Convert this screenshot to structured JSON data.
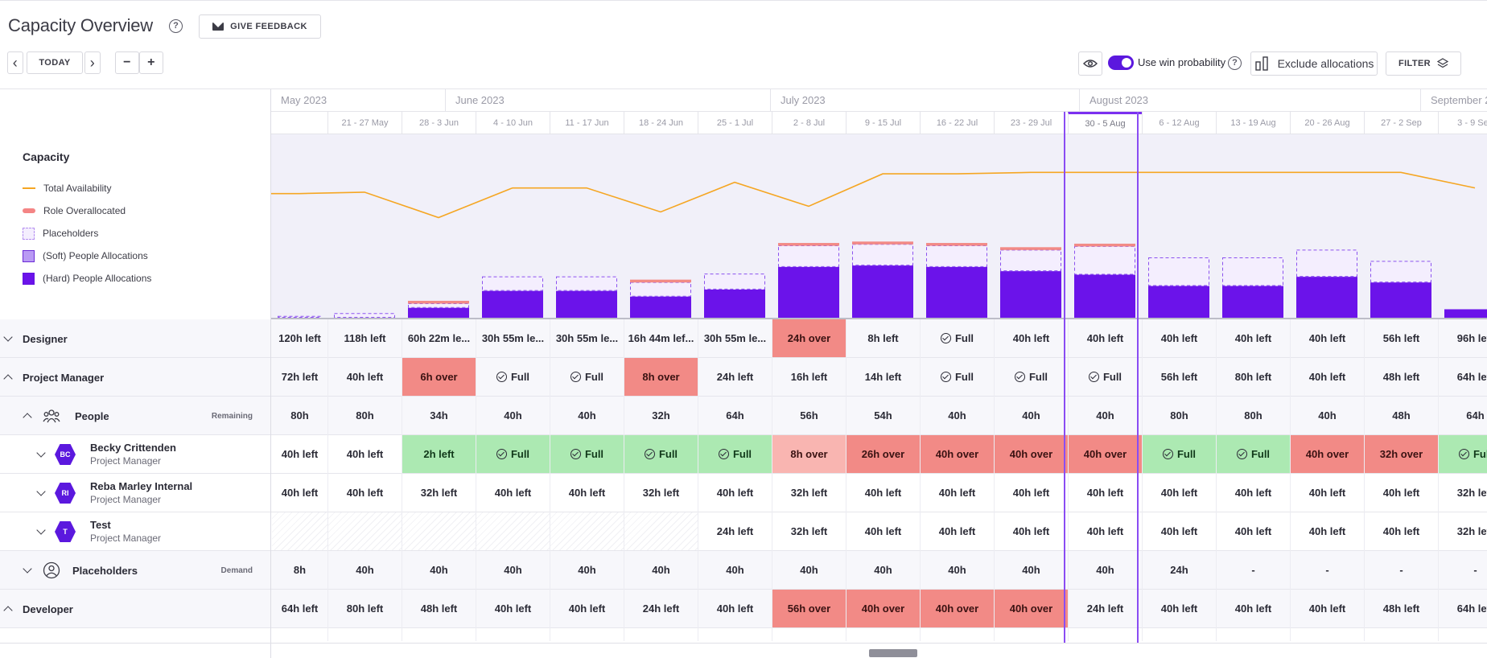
{
  "header": {
    "title": "Capacity Overview",
    "feedback_label": "GIVE FEEDBACK",
    "today_label": "TODAY",
    "minus_label": "−",
    "plus_label": "+",
    "prev_label": "‹",
    "next_label": "›",
    "win_probability_label": "Use win probability",
    "exclude_label": "Exclude allocations",
    "filter_label": "FILTER"
  },
  "timeline": {
    "months": [
      {
        "label": "May 2023"
      },
      {
        "label": "June 2023"
      },
      {
        "label": "July 2023"
      },
      {
        "label": "August 2023"
      },
      {
        "label": "September 2"
      }
    ],
    "weeks": [
      "",
      "21 - 27 May",
      "28 - 3 Jun",
      "4 - 10 Jun",
      "11 - 17 Jun",
      "18 - 24 Jun",
      "25 - 1 Jul",
      "2 - 8 Jul",
      "9 - 15 Jul",
      "16 - 22 Jul",
      "23 - 29 Jul",
      "30 - 5 Aug",
      "6 - 12 Aug",
      "13 - 19 Aug",
      "20 - 26 Aug",
      "27 - 2 Sep",
      "3 - 9 Sep"
    ],
    "current_week_index": 11
  },
  "legend": {
    "title": "Capacity",
    "items": [
      {
        "label": "Total Availability",
        "kind": "line"
      },
      {
        "label": "Role Overallocated",
        "kind": "over"
      },
      {
        "label": "Placeholders",
        "kind": "ph"
      },
      {
        "label": "(Soft) People Allocations",
        "kind": "soft"
      },
      {
        "label": "(Hard) People Allocations",
        "kind": "hard"
      }
    ]
  },
  "chart_data": {
    "type": "bar",
    "categories": [
      "",
      "21 - 27 May",
      "28 - 3 Jun",
      "4 - 10 Jun",
      "11 - 17 Jun",
      "18 - 24 Jun",
      "25 - 1 Jul",
      "2 - 8 Jul",
      "9 - 15 Jul",
      "16 - 22 Jul",
      "23 - 29 Jul",
      "30 - 5 Aug",
      "6 - 12 Aug",
      "13 - 19 Aug",
      "20 - 26 Aug",
      "27 - 2 Sep",
      "3 - 9 Sep"
    ],
    "series": [
      {
        "name": "Total Availability",
        "values": [
          176,
          178,
          142,
          184,
          184,
          150,
          192,
          158,
          204,
          204,
          206,
          206,
          206,
          206,
          206,
          206,
          184
        ]
      },
      {
        "name": "(Hard) People Allocations",
        "values": [
          0,
          0,
          14,
          38,
          38,
          30,
          40,
          72,
          74,
          72,
          66,
          61,
          45,
          45,
          58,
          50,
          12
        ]
      },
      {
        "name": "Placeholders",
        "values": [
          2,
          6,
          6,
          20,
          20,
          20,
          22,
          30,
          30,
          30,
          30,
          40,
          40,
          40,
          38,
          30,
          0
        ]
      },
      {
        "name": "Role Overallocated",
        "values": [
          0,
          0,
          4,
          0,
          0,
          4,
          0,
          4,
          4,
          4,
          4,
          4,
          0,
          0,
          0,
          0,
          0
        ]
      }
    ],
    "ylim": [
      0,
      260
    ]
  },
  "rows": [
    {
      "key": "designer",
      "type": "role",
      "name": "Designer",
      "expanded": false,
      "cells": [
        [
          "120h left",
          "n"
        ],
        [
          "118h left",
          "n"
        ],
        [
          "60h 22m le...",
          "n"
        ],
        [
          "30h 55m le...",
          "n"
        ],
        [
          "30h 55m le...",
          "n"
        ],
        [
          "16h 44m lef...",
          "n"
        ],
        [
          "30h 55m le...",
          "n"
        ],
        [
          "24h over",
          "red"
        ],
        [
          "8h left",
          "n"
        ],
        [
          "Full",
          "full"
        ],
        [
          "40h left",
          "n"
        ],
        [
          "40h left",
          "n"
        ],
        [
          "40h left",
          "n"
        ],
        [
          "40h left",
          "n"
        ],
        [
          "40h left",
          "n"
        ],
        [
          "56h left",
          "n"
        ],
        [
          "96h left",
          "n"
        ]
      ]
    },
    {
      "key": "pm",
      "type": "role",
      "name": "Project Manager",
      "expanded": true,
      "cells": [
        [
          "72h left",
          "n"
        ],
        [
          "40h left",
          "n"
        ],
        [
          "6h over",
          "red"
        ],
        [
          "Full",
          "full"
        ],
        [
          "Full",
          "full"
        ],
        [
          "8h over",
          "red"
        ],
        [
          "24h left",
          "n"
        ],
        [
          "16h left",
          "n"
        ],
        [
          "14h left",
          "n"
        ],
        [
          "Full",
          "full"
        ],
        [
          "Full",
          "full"
        ],
        [
          "Full",
          "full"
        ],
        [
          "56h left",
          "n"
        ],
        [
          "80h left",
          "n"
        ],
        [
          "40h left",
          "n"
        ],
        [
          "48h left",
          "n"
        ],
        [
          "64h left",
          "n"
        ]
      ]
    },
    {
      "key": "people",
      "type": "people",
      "name": "People",
      "tag": "Remaining",
      "cells": [
        [
          "80h",
          "n"
        ],
        [
          "80h",
          "n"
        ],
        [
          "34h",
          "n"
        ],
        [
          "40h",
          "n"
        ],
        [
          "40h",
          "n"
        ],
        [
          "32h",
          "n"
        ],
        [
          "64h",
          "n"
        ],
        [
          "56h",
          "n"
        ],
        [
          "54h",
          "n"
        ],
        [
          "40h",
          "n"
        ],
        [
          "40h",
          "n"
        ],
        [
          "40h",
          "n"
        ],
        [
          "80h",
          "n"
        ],
        [
          "80h",
          "n"
        ],
        [
          "40h",
          "n"
        ],
        [
          "48h",
          "n"
        ],
        [
          "64h",
          "n"
        ]
      ]
    },
    {
      "key": "becky",
      "type": "person",
      "name": "Becky Crittenden",
      "role": "Project Manager",
      "initials": "BC",
      "cells": [
        [
          "40h left",
          "n"
        ],
        [
          "40h left",
          "n"
        ],
        [
          "2h left",
          "green"
        ],
        [
          "Full",
          "gfull"
        ],
        [
          "Full",
          "gfull"
        ],
        [
          "Full",
          "gfull"
        ],
        [
          "Full",
          "gfull"
        ],
        [
          "8h over",
          "redlight"
        ],
        [
          "26h over",
          "red"
        ],
        [
          "40h over",
          "red"
        ],
        [
          "40h over",
          "red"
        ],
        [
          "40h over",
          "red"
        ],
        [
          "Full",
          "gfull"
        ],
        [
          "Full",
          "gfull"
        ],
        [
          "40h over",
          "red"
        ],
        [
          "32h over",
          "red"
        ],
        [
          "Full",
          "gfull"
        ]
      ]
    },
    {
      "key": "reba",
      "type": "person",
      "name": "Reba Marley Internal",
      "role": "Project Manager",
      "initials": "RI",
      "cells": [
        [
          "40h left",
          "n"
        ],
        [
          "40h left",
          "n"
        ],
        [
          "32h left",
          "n"
        ],
        [
          "40h left",
          "n"
        ],
        [
          "40h left",
          "n"
        ],
        [
          "32h left",
          "n"
        ],
        [
          "40h left",
          "n"
        ],
        [
          "32h left",
          "n"
        ],
        [
          "40h left",
          "n"
        ],
        [
          "40h left",
          "n"
        ],
        [
          "40h left",
          "n"
        ],
        [
          "40h left",
          "n"
        ],
        [
          "40h left",
          "n"
        ],
        [
          "40h left",
          "n"
        ],
        [
          "40h left",
          "n"
        ],
        [
          "40h left",
          "n"
        ],
        [
          "32h left",
          "n"
        ]
      ]
    },
    {
      "key": "test",
      "type": "person",
      "name": "Test",
      "role": "Project Manager",
      "initials": "T",
      "cells": [
        [
          "",
          "hatch"
        ],
        [
          "",
          "hatch"
        ],
        [
          "",
          "hatch"
        ],
        [
          "",
          "hatch"
        ],
        [
          "",
          "hatch"
        ],
        [
          "",
          "hatch"
        ],
        [
          "24h left",
          "n"
        ],
        [
          "32h left",
          "n"
        ],
        [
          "40h left",
          "n"
        ],
        [
          "40h left",
          "n"
        ],
        [
          "40h left",
          "n"
        ],
        [
          "40h left",
          "n"
        ],
        [
          "40h left",
          "n"
        ],
        [
          "40h left",
          "n"
        ],
        [
          "40h left",
          "n"
        ],
        [
          "40h left",
          "n"
        ],
        [
          "32h left",
          "n"
        ]
      ]
    },
    {
      "key": "placeholders",
      "type": "placeholders",
      "name": "Placeholders",
      "tag": "Demand",
      "cells": [
        [
          "8h",
          "n"
        ],
        [
          "40h",
          "n"
        ],
        [
          "40h",
          "n"
        ],
        [
          "40h",
          "n"
        ],
        [
          "40h",
          "n"
        ],
        [
          "40h",
          "n"
        ],
        [
          "40h",
          "n"
        ],
        [
          "40h",
          "n"
        ],
        [
          "40h",
          "n"
        ],
        [
          "40h",
          "n"
        ],
        [
          "40h",
          "n"
        ],
        [
          "40h",
          "n"
        ],
        [
          "24h",
          "n"
        ],
        [
          "-",
          "n"
        ],
        [
          "-",
          "n"
        ],
        [
          "-",
          "n"
        ],
        [
          "-",
          "n"
        ]
      ]
    },
    {
      "key": "developer",
      "type": "role",
      "name": "Developer",
      "expanded": true,
      "cells": [
        [
          "64h left",
          "n"
        ],
        [
          "80h left",
          "n"
        ],
        [
          "48h left",
          "n"
        ],
        [
          "40h left",
          "n"
        ],
        [
          "40h left",
          "n"
        ],
        [
          "24h left",
          "n"
        ],
        [
          "40h left",
          "n"
        ],
        [
          "56h over",
          "red"
        ],
        [
          "40h over",
          "red"
        ],
        [
          "40h over",
          "red"
        ],
        [
          "40h over",
          "red"
        ],
        [
          "24h left",
          "n"
        ],
        [
          "40h left",
          "n"
        ],
        [
          "40h left",
          "n"
        ],
        [
          "40h left",
          "n"
        ],
        [
          "48h left",
          "n"
        ],
        [
          "64h left",
          "n"
        ]
      ]
    }
  ],
  "colors": {
    "accent": "#5b18de",
    "hard": "#6b13ea",
    "placeholder": "#f4eefe",
    "over": "#f28a86",
    "green": "#ace9b2",
    "availability": "#f5a623"
  }
}
